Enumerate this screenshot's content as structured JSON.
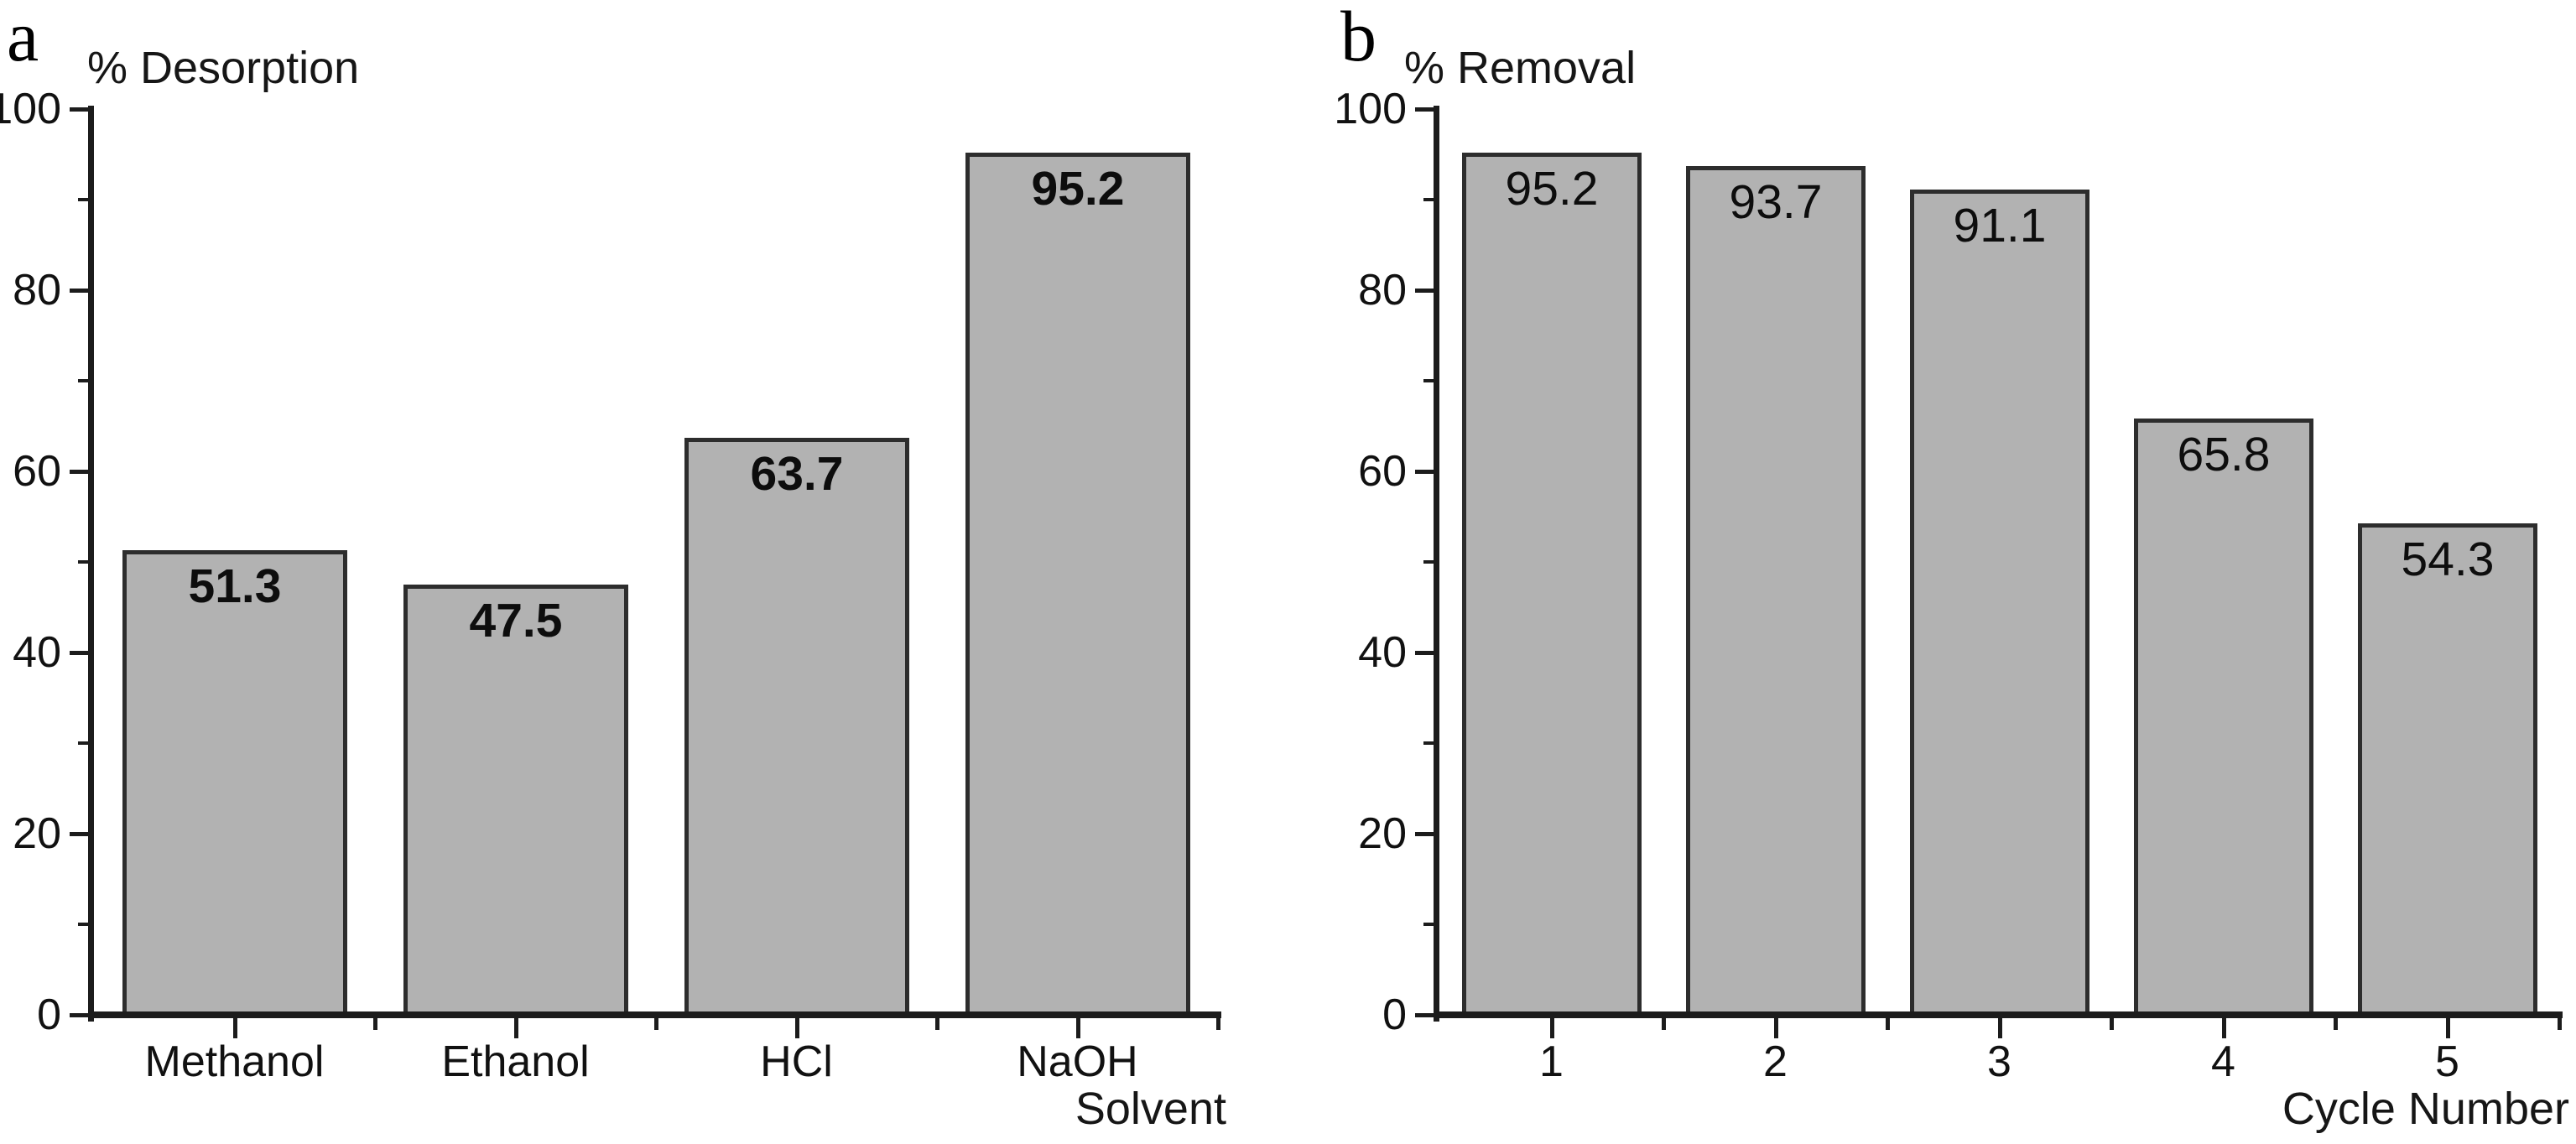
{
  "figure": {
    "background": "#ffffff",
    "colors": {
      "bar_fill": "#b2b2b2",
      "bar_border": "#2d2d2d",
      "axis": "#1c1c1c",
      "text": "#111111"
    }
  },
  "chart_data": [
    {
      "type": "bar",
      "panel_label": "a",
      "y_axis_title": "% Desorption",
      "x_axis_title": "Solvent",
      "categories": [
        "Methanol",
        "Ethanol",
        "HCl",
        "NaOH"
      ],
      "values": [
        51.3,
        47.5,
        63.7,
        95.2
      ],
      "bar_labels": [
        "51.3",
        "47.5",
        "63.7",
        "95.2"
      ],
      "bar_labels_bold": true,
      "ylim": [
        0,
        100
      ],
      "y_major_ticks": [
        0,
        20,
        40,
        60,
        80,
        100
      ],
      "y_minor_ticks": [
        10,
        30,
        50,
        70,
        90
      ],
      "grid": false,
      "legend": null
    },
    {
      "type": "bar",
      "panel_label": "b",
      "y_axis_title": "% Removal",
      "x_axis_title": "Cycle Number",
      "categories": [
        "1",
        "2",
        "3",
        "4",
        "5"
      ],
      "values": [
        95.2,
        93.7,
        91.1,
        65.8,
        54.3
      ],
      "bar_labels": [
        "95.2",
        "93.7",
        "91.1",
        "65.8",
        "54.3"
      ],
      "bar_labels_bold": false,
      "ylim": [
        0,
        100
      ],
      "y_major_ticks": [
        0,
        20,
        40,
        60,
        80,
        100
      ],
      "y_minor_ticks": [
        10,
        30,
        50,
        70,
        90
      ],
      "grid": false,
      "legend": null
    }
  ]
}
